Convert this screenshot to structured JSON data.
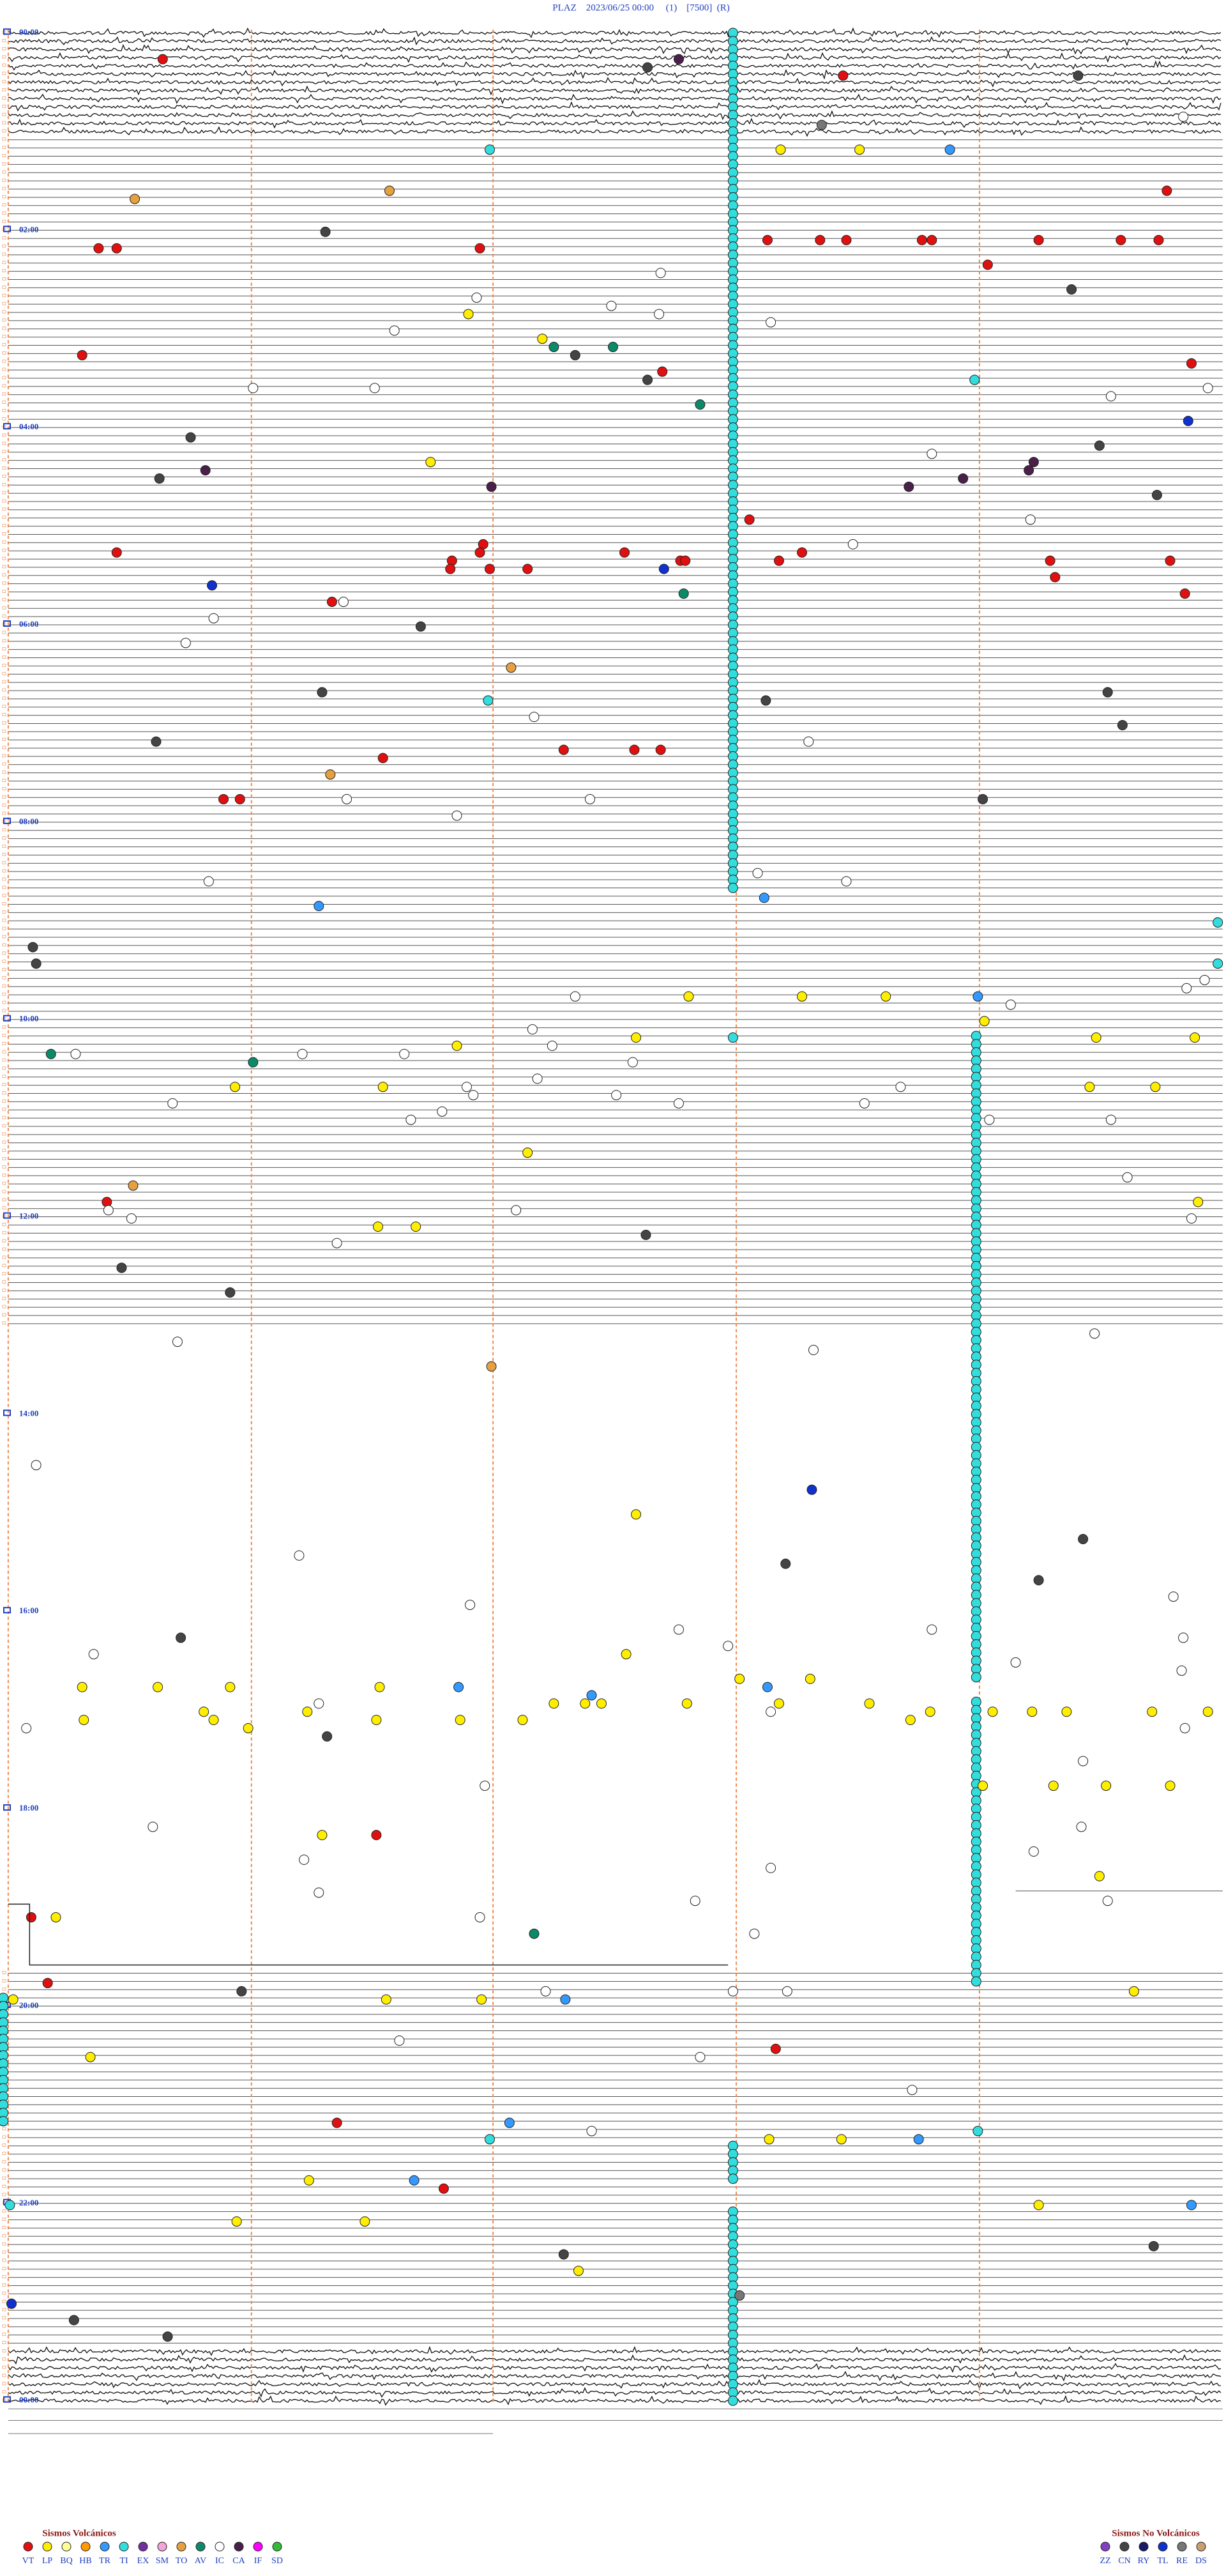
{
  "header": {
    "title": "PLAZ    2023/06/25 00:00     (1)    [7500]  (R)"
  },
  "hours": [
    "00:00",
    "02:00",
    "04:00",
    "06:00",
    "08:00",
    "10:00",
    "12:00",
    "14:00",
    "16:00",
    "18:00",
    "20:00",
    "22:00",
    "00:00"
  ],
  "legend": {
    "volcanic": {
      "title": "Sismos Volcánicos",
      "items": [
        {
          "code": "VT",
          "color": "#e01010"
        },
        {
          "code": "LP",
          "color": "#ffee00"
        },
        {
          "code": "BQ",
          "color": "#ffff99"
        },
        {
          "code": "HB",
          "color": "#ff9900"
        },
        {
          "code": "TR",
          "color": "#3399ff"
        },
        {
          "code": "TI",
          "color": "#33dddd"
        },
        {
          "code": "EX",
          "color": "#7030a0"
        },
        {
          "code": "SM",
          "color": "#f2a6d8"
        },
        {
          "code": "TO",
          "color": "#e6a040"
        },
        {
          "code": "AV",
          "color": "#0b8a6a"
        },
        {
          "code": "IC",
          "color": "#ffffff"
        },
        {
          "code": "CA",
          "color": "#4a1f4a"
        },
        {
          "code": "IF",
          "color": "#ff00ff"
        },
        {
          "code": "SD",
          "color": "#33bb33"
        }
      ]
    },
    "non_volcanic": {
      "title": "Sismos No Volcánicos",
      "items": [
        {
          "code": "ZZ",
          "color": "#8040c0"
        },
        {
          "code": "CN",
          "color": "#444444"
        },
        {
          "code": "RY",
          "color": "#1a1a66"
        },
        {
          "code": "TL",
          "color": "#1030d0"
        },
        {
          "code": "RE",
          "color": "#777777"
        },
        {
          "code": "DS",
          "color": "#c8a070"
        }
      ]
    }
  }
}
